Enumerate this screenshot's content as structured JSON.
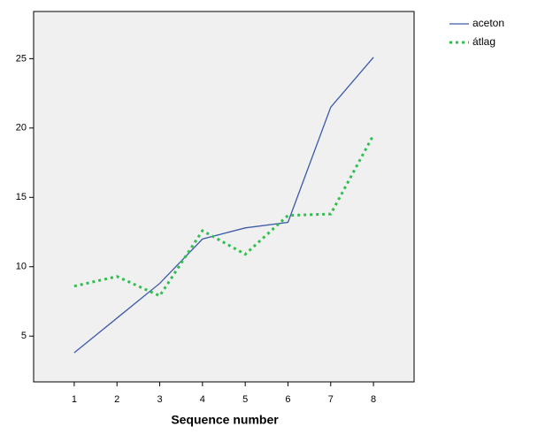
{
  "chart_data": {
    "type": "line",
    "x_label": "Sequence number",
    "x": [
      1,
      2,
      3,
      4,
      5,
      6,
      7,
      8
    ],
    "xlim": [
      0.05,
      8.95
    ],
    "xticks": [
      1,
      2,
      3,
      4,
      5,
      6,
      7,
      8
    ],
    "ylim": [
      1.7,
      28.4
    ],
    "yticks": [
      5,
      10,
      15,
      20,
      25
    ],
    "series": [
      {
        "name": "aceton",
        "color": "#3d5aa8",
        "dash": "solid",
        "values": [
          3.8,
          6.3,
          8.8,
          12.0,
          12.8,
          13.2,
          21.5,
          25.1
        ]
      },
      {
        "name": "átlag",
        "color": "#2fbf4f",
        "dash": "dotted",
        "values": [
          8.6,
          9.3,
          7.9,
          12.6,
          10.9,
          13.7,
          13.8,
          19.5
        ]
      }
    ],
    "legend": "top-right-outside",
    "plot_background": "#f0f0f0"
  }
}
